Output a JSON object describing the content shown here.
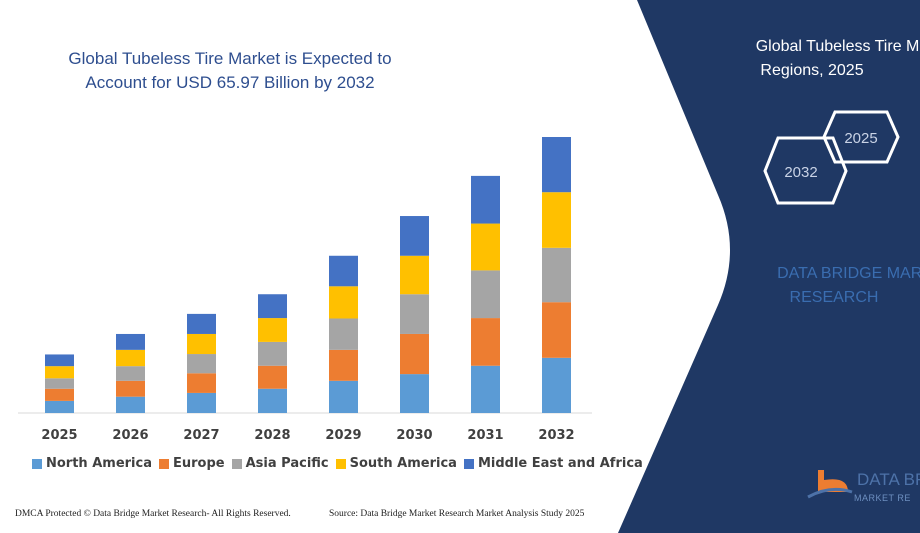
{
  "header": {
    "title": "Global Tubeless Tire Market is Expected to Account for USD 65.97 Billion by 2032"
  },
  "side_panel": {
    "title_line1": "Global Tubeless Tire Ma",
    "title_line2": "Regions, 2025",
    "hex_years": [
      "2025",
      "2032"
    ],
    "brand_line1": "DATA BRIDGE MARK",
    "brand_line2": "RESEARCH",
    "logo_text": "DATA BRI",
    "logo_subtext": "MARKET RE",
    "background_color": "#1f3864"
  },
  "footer": {
    "left": "DMCA Protected © Data Bridge Market Research-  All Rights Reserved.",
    "right": "Source: Data Bridge Market Research  Market Analysis Study 2025"
  },
  "chart_data": {
    "type": "bar",
    "stacked": true,
    "title": "Global Tubeless Tire Market is Expected to Account for USD 65.97 Billion by 2032",
    "xlabel": "",
    "ylabel": "",
    "y_axis_visible": false,
    "grid": false,
    "legend_placement": "bottom",
    "categories": [
      "2025",
      "2026",
      "2027",
      "2028",
      "2029",
      "2030",
      "2031",
      "2032"
    ],
    "series": [
      {
        "name": "North America",
        "color": "#5b9bd5",
        "values": [
          2.9,
          3.9,
          4.8,
          5.8,
          7.7,
          9.3,
          11.3,
          13.2
        ]
      },
      {
        "name": "Europe",
        "color": "#ed7d31",
        "values": [
          2.9,
          3.8,
          4.7,
          5.5,
          7.4,
          9.6,
          11.4,
          13.3
        ]
      },
      {
        "name": "Asia Pacific",
        "color": "#a5a5a5",
        "values": [
          2.5,
          3.5,
          4.6,
          5.7,
          7.5,
          9.5,
          11.4,
          13.0
        ]
      },
      {
        "name": "South America",
        "color": "#ffc000",
        "values": [
          2.9,
          3.9,
          4.8,
          5.7,
          7.7,
          9.2,
          11.2,
          13.3
        ]
      },
      {
        "name": "Middle East and Africa",
        "color": "#4472c4",
        "values": [
          2.8,
          3.8,
          4.8,
          5.7,
          7.3,
          9.5,
          11.4,
          13.2
        ]
      }
    ],
    "ylim": [
      0,
      66
    ]
  }
}
